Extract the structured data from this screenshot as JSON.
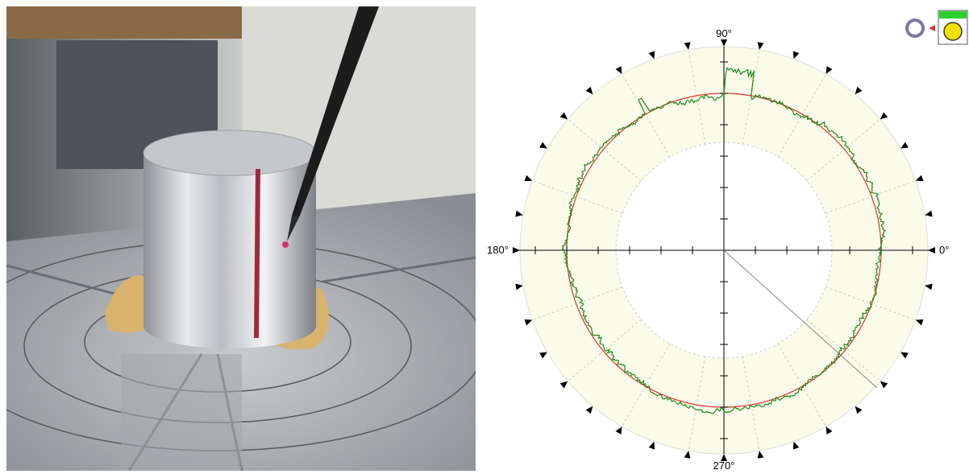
{
  "polar_plot": {
    "angle_labels": {
      "top": "90°",
      "left": "180°",
      "right": "0°",
      "bottom": "270°"
    }
  }
}
